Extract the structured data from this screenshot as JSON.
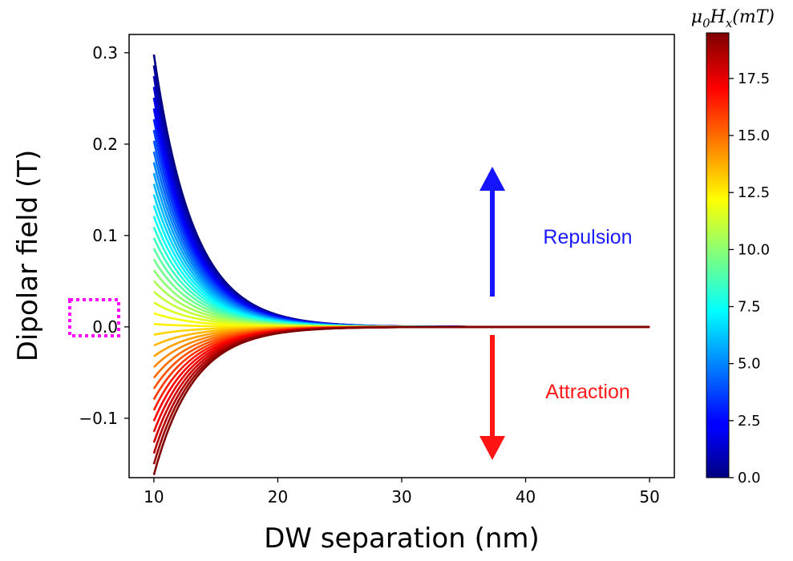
{
  "chart_data": {
    "type": "line",
    "xlabel": "DW separation (nm)",
    "ylabel": "Dipolar field (T)",
    "xlim": [
      8,
      52
    ],
    "ylim": [
      -0.165,
      0.32
    ],
    "x_ticks": [
      10,
      20,
      30,
      40,
      50
    ],
    "x_tick_labels": [
      "10",
      "20",
      "30",
      "40",
      "50"
    ],
    "y_ticks": [
      -0.1,
      0.0,
      0.1,
      0.2,
      0.3
    ],
    "y_tick_labels": [
      "−0.1",
      "0.0",
      "0.1",
      "0.2",
      "0.3"
    ],
    "x_range": [
      10,
      50
    ],
    "series_rule": {
      "count": 40,
      "field_min_mT": 0.0,
      "field_max_mT": 19.5,
      "value_at_x10_first": 0.298,
      "value_at_x10_last": -0.162,
      "decay_length_nm": 3.2,
      "description_param": "mu0Hx (mT)"
    },
    "colorbar": {
      "label": "μ₀Hₓ(mT)",
      "label_main": "μ",
      "label_sub1": "0",
      "label_H": "H",
      "label_sub2": "x",
      "label_unit": "(mT)",
      "vmin": 0.0,
      "vmax": 19.5,
      "colormap": "jet",
      "ticks": [
        0.0,
        2.5,
        5.0,
        7.5,
        10.0,
        12.5,
        15.0,
        17.5
      ],
      "tick_labels": [
        "0.0",
        "2.5",
        "5.0",
        "7.5",
        "10.0",
        "12.5",
        "15.0",
        "17.5"
      ]
    },
    "annotations": [
      {
        "text": "Repulsion",
        "color": "#1a1aff",
        "arrow": "up",
        "arrow_color": "#1414ff"
      },
      {
        "text": "Attraction",
        "color": "#ff1a1a",
        "arrow": "down",
        "arrow_color": "#ff1414"
      }
    ],
    "highlight_box": {
      "target_tick": "0.0",
      "color": "#ff00ff",
      "style": "dotted"
    },
    "grid": false,
    "legend": "none"
  }
}
